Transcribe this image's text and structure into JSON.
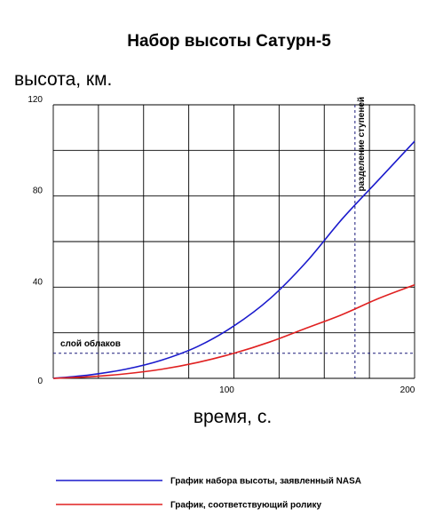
{
  "chart_data": {
    "type": "line",
    "title": "Набор высоты Сатурн-5",
    "ylabel": "высота, км.",
    "xlabel": "время, с.",
    "xlim": [
      0,
      200
    ],
    "ylim": [
      0,
      120
    ],
    "x_ticks": [
      0,
      100,
      200
    ],
    "x_tick_labels": [
      "",
      "100",
      "200"
    ],
    "y_ticks": [
      0,
      40,
      80,
      120
    ],
    "y_tick_labels": [
      "0",
      "40",
      "80",
      "120"
    ],
    "grid": true,
    "series": [
      {
        "name": "График набора высоты, заявленный NASA",
        "color": "#1a1acc",
        "x": [
          0,
          20,
          40,
          60,
          80,
          100,
          120,
          140,
          160,
          180,
          200
        ],
        "y": [
          0,
          1.5,
          4,
          8,
          14,
          23,
          35,
          51,
          70,
          87,
          104
        ]
      },
      {
        "name": "График, соответствующий ролику",
        "color": "#e02020",
        "x": [
          0,
          20,
          40,
          60,
          80,
          100,
          120,
          140,
          160,
          180,
          200
        ],
        "y": [
          0,
          0.7,
          2,
          4,
          7,
          11,
          16,
          22,
          28,
          35,
          41
        ]
      }
    ],
    "annotations": [
      {
        "text": "слой облаков",
        "type": "hline",
        "y": 11
      },
      {
        "text": "разделение ступеней",
        "type": "vline",
        "x": 167
      }
    ],
    "legend": "bottom"
  }
}
